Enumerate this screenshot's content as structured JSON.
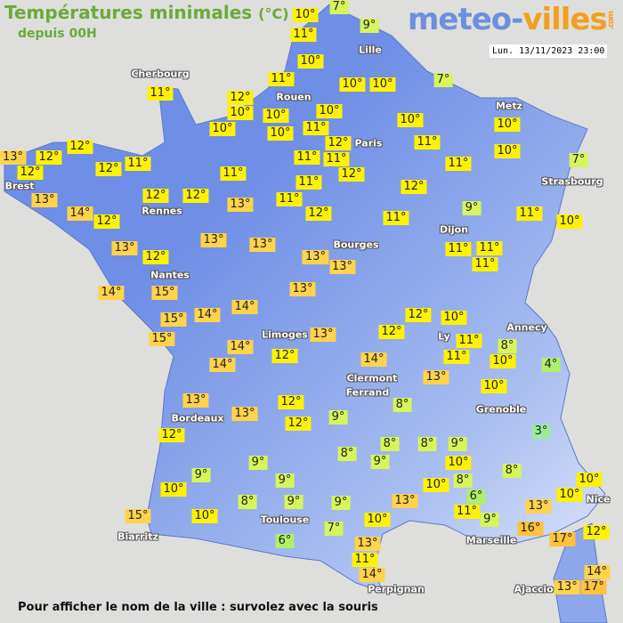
{
  "header": {
    "title": "Températures minimales",
    "unit": "(°C)",
    "subtitle": "depuis 00H",
    "logo_text": "meteo-villes.com",
    "logo_part1": "meteo-",
    "logo_part2": "villes",
    "logo_part3": ".com",
    "datetime": "Lun. 13/11/2023 23:00"
  },
  "colors": {
    "land": "#7090e6",
    "sea": "#dededc",
    "title": "#6aaa3a",
    "warm": "#ffd34a",
    "mild": "#fff200",
    "cool": "#d6f55a",
    "cold": "#b0ef6a",
    "coldest": "#9ceb9c"
  },
  "temps": [
    "10°",
    "7°",
    "11°",
    "9°",
    "10°",
    "11°",
    "12°",
    "10°",
    "10°",
    "10°",
    "10°",
    "10°",
    "10°",
    "7°",
    "10°",
    "11°",
    "12°",
    "10°",
    "11°",
    "11°",
    "11°",
    "12°",
    "11°",
    "11°",
    "11°",
    "12°",
    "11°",
    "9°",
    "10°",
    "10°",
    "7°",
    "11°",
    "10°",
    "11°",
    "11°",
    "11°",
    "12°",
    "13°",
    "13°",
    "13°",
    "13°",
    "13°",
    "13°",
    "11°",
    "12°",
    "12°",
    "11°",
    "12°",
    "12°",
    "13°",
    "12°",
    "12°",
    "13°",
    "14°",
    "12°",
    "13°",
    "12°",
    "14°",
    "15°",
    "11°",
    "15°",
    "14°",
    "14°",
    "15°",
    "14°",
    "14°",
    "12°",
    "13°",
    "13°",
    "13°",
    "12°",
    "12°",
    "12°",
    "9°",
    "9°",
    "10°",
    "9°",
    "8°",
    "9°",
    "15°",
    "10°",
    "6°",
    "9°",
    "7°",
    "12°",
    "10°",
    "12°",
    "11°",
    "11°",
    "8°",
    "10°",
    "4°",
    "14°",
    "13°",
    "10°",
    "8°",
    "9°",
    "8°",
    "3°",
    "8°",
    "8°",
    "9°",
    "10°",
    "9°",
    "8°",
    "8°",
    "10°",
    "6°",
    "13°",
    "11°",
    "9°",
    "13°",
    "10°",
    "10°",
    "10°",
    "16°",
    "17°",
    "12°",
    "13°",
    "11°",
    "14°",
    "13°",
    "14°",
    "17°"
  ],
  "cities": [
    "Cherbourg",
    "Lille",
    "Rouen",
    "Paris",
    "Metz",
    "Strasbourg",
    "Brest",
    "Rennes",
    "Dijon",
    "Bourges",
    "Nantes",
    "Limoges",
    "Annecy",
    "Ly",
    "Clermont",
    "Ferrand",
    "Grenoble",
    "Bordeaux",
    "Nice",
    "Toulouse",
    "Biarritz",
    "Marseille",
    "Perpignan",
    "Ajaccio"
  ],
  "footer": "Pour afficher le nom de la ville : survolez avec la souris"
}
